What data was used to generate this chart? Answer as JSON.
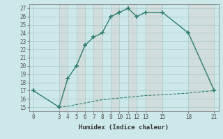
{
  "xlabel": "Humidex (Indice chaleur)",
  "upper_x": [
    0,
    3,
    4,
    5,
    6,
    7,
    8,
    9,
    10,
    11,
    12,
    13,
    15,
    18,
    21
  ],
  "upper_y": [
    17,
    15,
    18.5,
    20,
    22.5,
    23.5,
    24,
    26,
    26.5,
    27,
    26,
    26.5,
    26.5,
    24,
    17
  ],
  "lower_x": [
    3,
    4,
    5,
    6,
    7,
    8,
    9,
    10,
    11,
    12,
    13,
    15,
    18,
    21
  ],
  "lower_y": [
    15,
    15.1,
    15.3,
    15.5,
    15.7,
    15.9,
    16.0,
    16.1,
    16.2,
    16.3,
    16.4,
    16.5,
    16.7,
    17.0
  ],
  "line_color": "#2e7d6e",
  "bg_color": "#cce8e8",
  "grid_color": "#b0d4d4",
  "alt_bg_color": "#dff0f0",
  "ylim": [
    14.5,
    27.5
  ],
  "xlim": [
    -0.5,
    21.5
  ],
  "yticks": [
    15,
    16,
    17,
    18,
    19,
    20,
    21,
    22,
    23,
    24,
    25,
    26,
    27
  ],
  "xticks": [
    0,
    3,
    4,
    5,
    6,
    7,
    8,
    9,
    10,
    11,
    12,
    13,
    15,
    18,
    21
  ]
}
